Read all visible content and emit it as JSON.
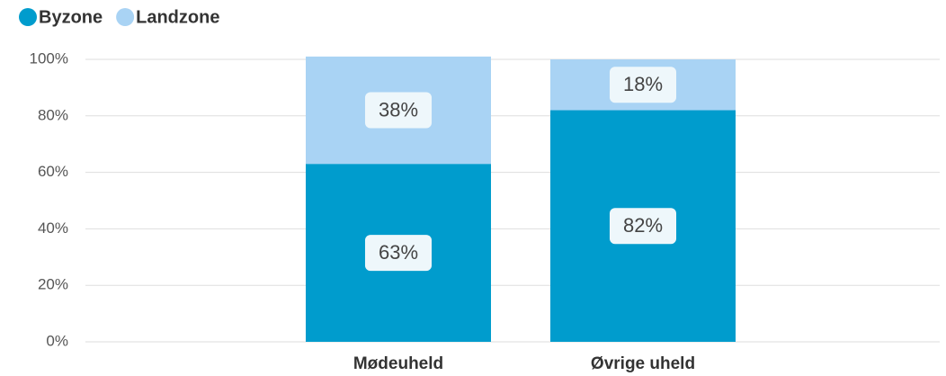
{
  "chart_data": {
    "type": "stacked_bar",
    "categories": [
      "Mødeuheld",
      "Øvrige uheld"
    ],
    "series": [
      {
        "name": "Byzone",
        "color": "#009ccd",
        "values": [
          63,
          82
        ],
        "value_labels": [
          "63%",
          "82%"
        ]
      },
      {
        "name": "Landzone",
        "color": "#a9d3f4",
        "values": [
          38,
          18
        ],
        "value_labels": [
          "38%",
          "18%"
        ]
      }
    ],
    "ylim": [
      0,
      100
    ],
    "yticks": [
      {
        "value": 0,
        "label": "0%"
      },
      {
        "value": 20,
        "label": "20%"
      },
      {
        "value": 40,
        "label": "40%"
      },
      {
        "value": 60,
        "label": "60%"
      },
      {
        "value": 80,
        "label": "80%"
      },
      {
        "value": 100,
        "label": "100%"
      }
    ],
    "grid": true,
    "legend": "top-left"
  }
}
